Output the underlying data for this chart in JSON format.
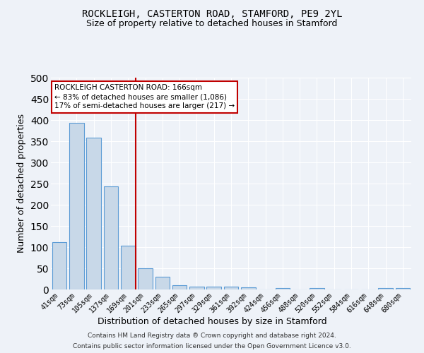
{
  "title": "ROCKLEIGH, CASTERTON ROAD, STAMFORD, PE9 2YL",
  "subtitle": "Size of property relative to detached houses in Stamford",
  "xlabel": "Distribution of detached houses by size in Stamford",
  "ylabel": "Number of detached properties",
  "footer_line1": "Contains HM Land Registry data ® Crown copyright and database right 2024.",
  "footer_line2": "Contains public sector information licensed under the Open Government Licence v3.0.",
  "categories": [
    "41sqm",
    "73sqm",
    "105sqm",
    "137sqm",
    "169sqm",
    "201sqm",
    "233sqm",
    "265sqm",
    "297sqm",
    "329sqm",
    "361sqm",
    "392sqm",
    "424sqm",
    "456sqm",
    "488sqm",
    "520sqm",
    "552sqm",
    "584sqm",
    "616sqm",
    "648sqm",
    "680sqm"
  ],
  "values": [
    111,
    393,
    358,
    243,
    104,
    50,
    30,
    10,
    6,
    6,
    7,
    5,
    0,
    4,
    0,
    4,
    0,
    0,
    0,
    4,
    4
  ],
  "bar_color": "#c8d8e8",
  "bar_edge_color": "#5b9bd5",
  "vline_color": "#c00000",
  "vline_index": 4,
  "annotation_text": "ROCKLEIGH CASTERTON ROAD: 166sqm\n← 83% of detached houses are smaller (1,086)\n17% of semi-detached houses are larger (217) →",
  "annotation_box_color": "white",
  "annotation_box_edge_color": "#c00000",
  "ylim": [
    0,
    500
  ],
  "yticks": [
    0,
    50,
    100,
    150,
    200,
    250,
    300,
    350,
    400,
    450,
    500
  ],
  "background_color": "#eef2f8",
  "grid_color": "white",
  "title_fontsize": 10,
  "subtitle_fontsize": 9,
  "axis_label_fontsize": 9,
  "tick_fontsize": 7,
  "annotation_fontsize": 7.5,
  "footer_fontsize": 6.5
}
